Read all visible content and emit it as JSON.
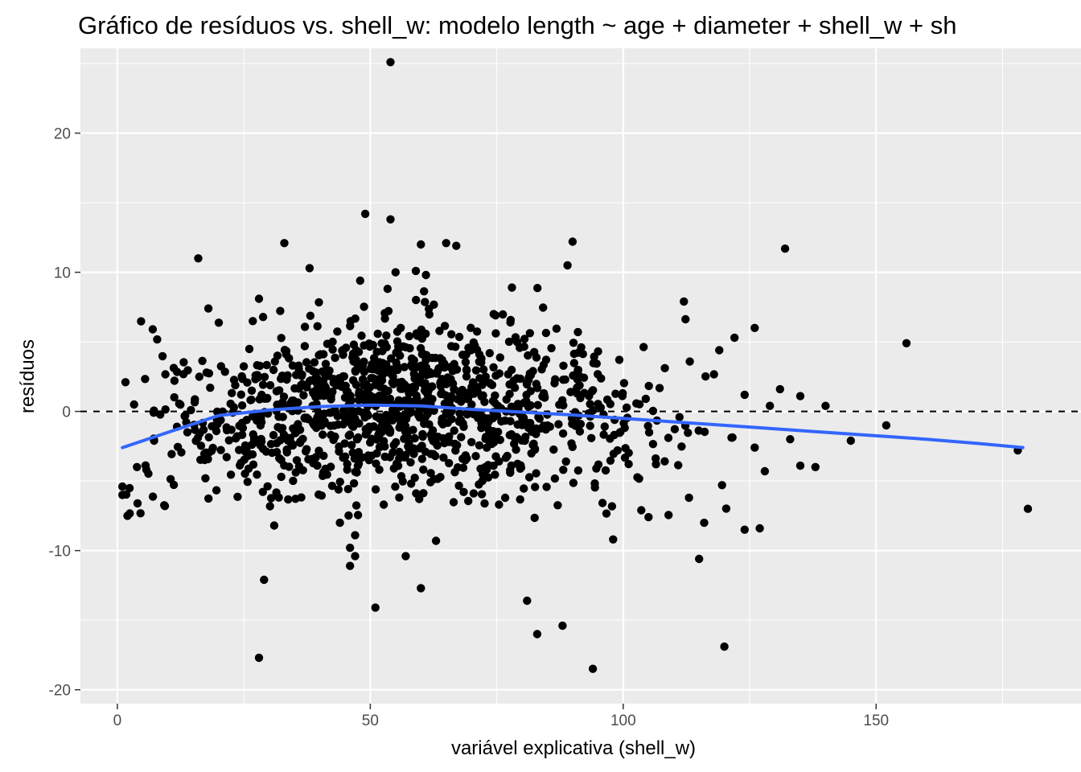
{
  "chart_data": {
    "type": "scatter",
    "title": "Gráfico de resíduos vs. shell_w: modelo length ~ age + diameter + shell_w + sh",
    "xlabel": "variável explicativa (shell_w)",
    "ylabel": "resíduos",
    "xlim": [
      -7.3,
      190.5
    ],
    "ylim": [
      -21,
      26.1
    ],
    "x_ticks": [
      0,
      50,
      100,
      150
    ],
    "x_tick_labels": [
      "0",
      "50",
      "100",
      "150"
    ],
    "y_ticks": [
      -20,
      -10,
      0,
      10,
      20
    ],
    "y_tick_labels": [
      "-20",
      "-10",
      "0",
      "10",
      "20"
    ],
    "grid": true,
    "background": "#ebebeb",
    "grid_color": "#ffffff",
    "point_color": "#000000",
    "smooth_color": "#3366ff",
    "reference_line": {
      "y": 0,
      "style": "dashed",
      "color": "#000000"
    },
    "points_description": "approx. 1300 points; explicitly listed outliers plus dense cloud around y=0 for x in 1..120",
    "outliers": [
      {
        "x": 54,
        "y": 25.1
      },
      {
        "x": 49,
        "y": 14.2
      },
      {
        "x": 54,
        "y": 13.8
      },
      {
        "x": 33,
        "y": 12.1
      },
      {
        "x": 60,
        "y": 12.0
      },
      {
        "x": 65,
        "y": 12.1
      },
      {
        "x": 67,
        "y": 11.9
      },
      {
        "x": 16,
        "y": 11.0
      },
      {
        "x": 90,
        "y": 12.2
      },
      {
        "x": 132,
        "y": 11.7
      },
      {
        "x": 89,
        "y": 10.5
      },
      {
        "x": 38,
        "y": 10.3
      },
      {
        "x": 55,
        "y": 10.0
      },
      {
        "x": 59,
        "y": 10.1
      },
      {
        "x": 61,
        "y": 9.8
      },
      {
        "x": 48,
        "y": 9.4
      },
      {
        "x": 78,
        "y": 8.9
      },
      {
        "x": 156,
        "y": 4.9
      },
      {
        "x": 140,
        "y": 0.4
      },
      {
        "x": 145,
        "y": -2.1
      },
      {
        "x": 152,
        "y": -1.0
      },
      {
        "x": 178,
        "y": -2.8
      },
      {
        "x": 180,
        "y": -7.0
      },
      {
        "x": 29,
        "y": -12.1
      },
      {
        "x": 28,
        "y": -17.7
      },
      {
        "x": 51,
        "y": -14.1
      },
      {
        "x": 57,
        "y": -10.4
      },
      {
        "x": 60,
        "y": -12.7
      },
      {
        "x": 81,
        "y": -13.6
      },
      {
        "x": 83,
        "y": -16.0
      },
      {
        "x": 88,
        "y": -15.4
      },
      {
        "x": 94,
        "y": -18.5
      },
      {
        "x": 120,
        "y": -16.9
      },
      {
        "x": 115,
        "y": -10.6
      },
      {
        "x": 98,
        "y": -9.2
      },
      {
        "x": 124,
        "y": -8.5
      },
      {
        "x": 127,
        "y": -8.4
      },
      {
        "x": 128,
        "y": -4.3
      },
      {
        "x": 135,
        "y": -3.9
      },
      {
        "x": 138,
        "y": -4.0
      },
      {
        "x": 133,
        "y": -2.0
      },
      {
        "x": 126,
        "y": -2.6
      },
      {
        "x": 122,
        "y": 5.3
      },
      {
        "x": 126,
        "y": 6.0
      },
      {
        "x": 112,
        "y": 7.9
      },
      {
        "x": 119,
        "y": 4.4
      },
      {
        "x": 131,
        "y": 1.6
      },
      {
        "x": 135,
        "y": 1.1
      },
      {
        "x": 124,
        "y": 1.2
      },
      {
        "x": 129,
        "y": 0.4
      },
      {
        "x": 2,
        "y": -7.5
      },
      {
        "x": 1,
        "y": -6.0
      },
      {
        "x": 1,
        "y": -5.4
      },
      {
        "x": 7,
        "y": 5.9
      },
      {
        "x": 18,
        "y": 7.4
      },
      {
        "x": 28,
        "y": 8.1
      },
      {
        "x": 44,
        "y": -8.0
      },
      {
        "x": 47,
        "y": -8.9
      },
      {
        "x": 46,
        "y": -9.8
      },
      {
        "x": 47,
        "y": -10.4
      },
      {
        "x": 46,
        "y": -11.1
      },
      {
        "x": 31,
        "y": -8.2
      },
      {
        "x": 63,
        "y": -9.3
      },
      {
        "x": 105,
        "y": -7.6
      },
      {
        "x": 116,
        "y": -8.0
      },
      {
        "x": 113,
        "y": -6.2
      }
    ],
    "smooth": {
      "x": [
        1,
        10,
        20,
        30,
        40,
        50,
        60,
        70,
        80,
        90,
        100,
        110,
        120,
        130,
        140,
        150,
        160,
        170,
        179
      ],
      "y": [
        -2.6,
        -1.5,
        -0.3,
        0.1,
        0.35,
        0.45,
        0.4,
        0.15,
        -0.05,
        -0.25,
        -0.5,
        -0.75,
        -1.0,
        -1.25,
        -1.5,
        -1.75,
        -2.0,
        -2.3,
        -2.6
      ]
    }
  }
}
